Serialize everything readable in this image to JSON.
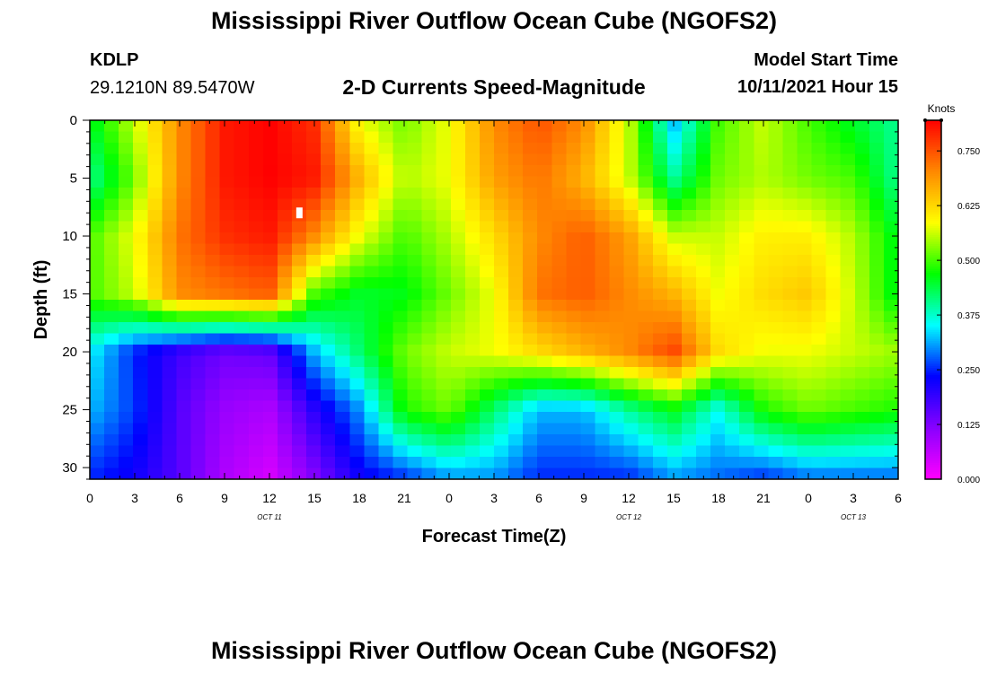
{
  "header": {
    "title_top": "Mississippi River Outflow Ocean Cube (NGOFS2)",
    "title_bottom": "Mississippi River Outflow Ocean Cube (NGOFS2)",
    "station_id": "KDLP",
    "station_coords": "29.1210N  89.5470W",
    "subtitle": "2-D Currents Speed-Magnitude",
    "model_start_label": "Model Start Time",
    "model_start_value": "10/11/2021 Hour 15"
  },
  "chart_data": {
    "type": "heatmap",
    "title": "2-D Currents Speed-Magnitude",
    "xlabel": "Forecast Time(Z)",
    "ylabel": "Depth (ft)",
    "x_range_hours": [
      0,
      54
    ],
    "x_ticks_hours": [
      0,
      3,
      6,
      9,
      12,
      15,
      18,
      21,
      24,
      27,
      30,
      33,
      36,
      39,
      42,
      45,
      48,
      51,
      54
    ],
    "x_tick_labels": [
      "0",
      "3",
      "6",
      "9",
      "12",
      "15",
      "18",
      "21",
      "0",
      "3",
      "6",
      "9",
      "12",
      "15",
      "18",
      "21",
      "0",
      "3",
      "6"
    ],
    "date_labels": [
      {
        "hour": 12,
        "text": "OCT 11"
      },
      {
        "hour": 36,
        "text": "OCT 12"
      },
      {
        "hour": 51,
        "text": "OCT 13"
      }
    ],
    "y_range": [
      0,
      31
    ],
    "y_ticks": [
      0,
      5,
      10,
      15,
      20,
      25,
      30
    ],
    "y_tick_labels": [
      "0",
      "5",
      "10",
      "15",
      "20",
      "25",
      "30"
    ],
    "colorbar": {
      "unit_label": "Knots",
      "range": [
        0,
        0.82
      ],
      "ticks": [
        0.0,
        0.125,
        0.25,
        0.375,
        0.5,
        0.625,
        0.75
      ],
      "tick_labels": [
        "0.000",
        "0.125",
        "0.250",
        "0.375",
        "0.500",
        "0.625",
        "0.750"
      ],
      "color_stops": [
        "#ff00ff",
        "#8800ff",
        "#0000ff",
        "#00ffff",
        "#00ff00",
        "#ffff00",
        "#ff8800",
        "#ff0000"
      ]
    },
    "grid_hours": [
      0,
      3,
      6,
      9,
      12,
      15,
      18,
      21,
      24,
      27,
      30,
      33,
      36,
      39,
      42,
      45,
      48,
      51,
      54
    ],
    "grid_depths": [
      0,
      5,
      10,
      15,
      20,
      25,
      31
    ],
    "speed_knots": [
      [
        0.45,
        0.56,
        0.7,
        0.8,
        0.82,
        0.78,
        0.58,
        0.52,
        0.58,
        0.7,
        0.75,
        0.7,
        0.56,
        0.32,
        0.5,
        0.56,
        0.5,
        0.45,
        0.4
      ],
      [
        0.4,
        0.52,
        0.7,
        0.8,
        0.82,
        0.8,
        0.66,
        0.55,
        0.58,
        0.68,
        0.72,
        0.66,
        0.56,
        0.4,
        0.52,
        0.55,
        0.52,
        0.5,
        0.4
      ],
      [
        0.5,
        0.58,
        0.72,
        0.78,
        0.8,
        0.7,
        0.58,
        0.5,
        0.55,
        0.62,
        0.7,
        0.74,
        0.68,
        0.56,
        0.56,
        0.6,
        0.6,
        0.55,
        0.45
      ],
      [
        0.5,
        0.56,
        0.7,
        0.72,
        0.74,
        0.5,
        0.45,
        0.46,
        0.52,
        0.58,
        0.72,
        0.74,
        0.7,
        0.66,
        0.58,
        0.62,
        0.64,
        0.56,
        0.45
      ],
      [
        0.35,
        0.25,
        0.18,
        0.14,
        0.15,
        0.32,
        0.42,
        0.52,
        0.56,
        0.58,
        0.62,
        0.66,
        0.7,
        0.76,
        0.62,
        0.58,
        0.58,
        0.56,
        0.54
      ],
      [
        0.32,
        0.26,
        0.16,
        0.1,
        0.08,
        0.2,
        0.3,
        0.48,
        0.52,
        0.42,
        0.32,
        0.32,
        0.4,
        0.46,
        0.36,
        0.48,
        0.52,
        0.5,
        0.48
      ],
      [
        0.25,
        0.22,
        0.16,
        0.08,
        0.04,
        0.12,
        0.22,
        0.25,
        0.3,
        0.3,
        0.25,
        0.25,
        0.25,
        0.3,
        0.28,
        0.25,
        0.28,
        0.28,
        0.28
      ]
    ],
    "annotations": [
      {
        "text": "max marker",
        "hour": 14,
        "depth": 8
      }
    ]
  }
}
